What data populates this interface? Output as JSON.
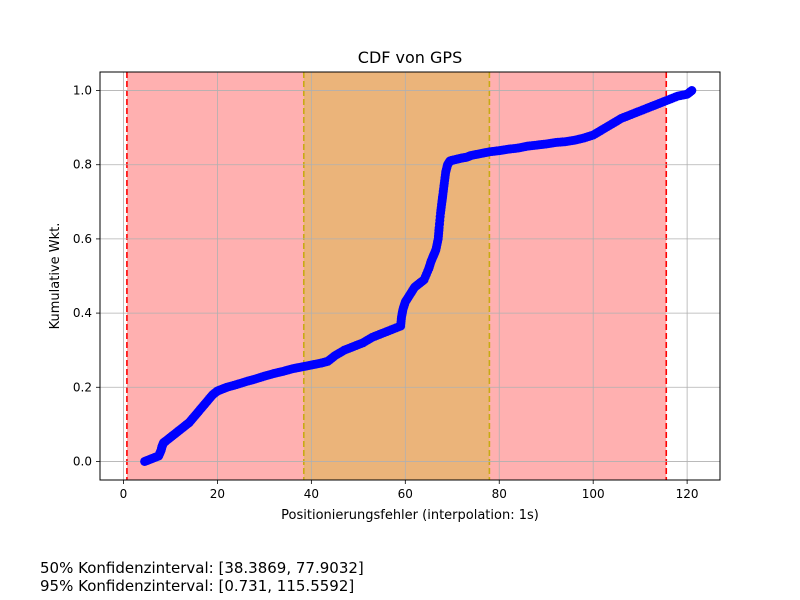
{
  "chart_data": {
    "type": "scatter",
    "title": "CDF von GPS",
    "xlabel": "Positionierungsfehler (interpolation: 1s)",
    "ylabel": "Kumulative Wkt.",
    "xlim": [
      -5,
      127
    ],
    "ylim": [
      -0.05,
      1.05
    ],
    "xticks": [
      0,
      20,
      40,
      60,
      80,
      100,
      120
    ],
    "yticks": [
      0.0,
      0.2,
      0.4,
      0.6,
      0.8,
      1.0
    ],
    "grid": true,
    "series": [
      {
        "color": "#0000ff",
        "x": [
          4.5,
          5.5,
          6.5,
          7.5,
          8.0,
          8.2,
          8.5,
          9.0,
          10,
          11,
          12,
          13,
          14,
          15,
          16,
          17,
          18,
          19,
          20,
          21,
          22,
          24,
          26,
          28,
          30,
          32,
          34,
          36,
          38,
          40,
          42,
          43.5,
          45,
          47,
          49,
          51,
          53,
          55,
          57,
          59,
          59.2,
          59.5,
          60,
          61,
          62,
          63,
          64,
          65,
          65.5,
          66,
          66.5,
          67,
          67.2,
          67.5,
          67.8,
          68,
          68.3,
          68.6,
          69,
          69.5,
          70,
          71,
          72,
          73,
          74,
          76,
          78,
          80,
          82,
          84,
          86,
          88,
          90,
          92,
          94,
          96,
          98,
          100,
          102,
          104,
          106,
          108,
          110,
          112,
          114,
          116,
          118,
          120,
          121
        ],
        "y": [
          0.0,
          0.005,
          0.01,
          0.015,
          0.03,
          0.04,
          0.05,
          0.055,
          0.065,
          0.075,
          0.085,
          0.095,
          0.105,
          0.12,
          0.135,
          0.15,
          0.165,
          0.18,
          0.19,
          0.195,
          0.2,
          0.207,
          0.215,
          0.222,
          0.23,
          0.237,
          0.243,
          0.25,
          0.255,
          0.26,
          0.265,
          0.27,
          0.285,
          0.3,
          0.31,
          0.32,
          0.335,
          0.345,
          0.355,
          0.365,
          0.39,
          0.41,
          0.43,
          0.45,
          0.47,
          0.48,
          0.49,
          0.52,
          0.54,
          0.555,
          0.57,
          0.6,
          0.63,
          0.67,
          0.7,
          0.72,
          0.75,
          0.78,
          0.8,
          0.81,
          0.812,
          0.815,
          0.818,
          0.82,
          0.825,
          0.83,
          0.835,
          0.838,
          0.842,
          0.845,
          0.85,
          0.853,
          0.856,
          0.86,
          0.862,
          0.866,
          0.872,
          0.88,
          0.895,
          0.91,
          0.925,
          0.935,
          0.945,
          0.955,
          0.965,
          0.975,
          0.985,
          0.99,
          1.0
        ]
      }
    ],
    "bands": [
      {
        "x0": 0.731,
        "x1": 115.5592,
        "fill": "#ffb0b0",
        "line_color": "#ff0000"
      },
      {
        "x0": 38.3869,
        "x1": 77.9032,
        "fill": "#ebb47a",
        "line_color": "#c8aa14"
      }
    ],
    "annotations": [
      "50% Konfidenzinterval: [38.3869, 77.9032]",
      "95% Konfidenzinterval: [0.731, 115.5592]"
    ]
  }
}
